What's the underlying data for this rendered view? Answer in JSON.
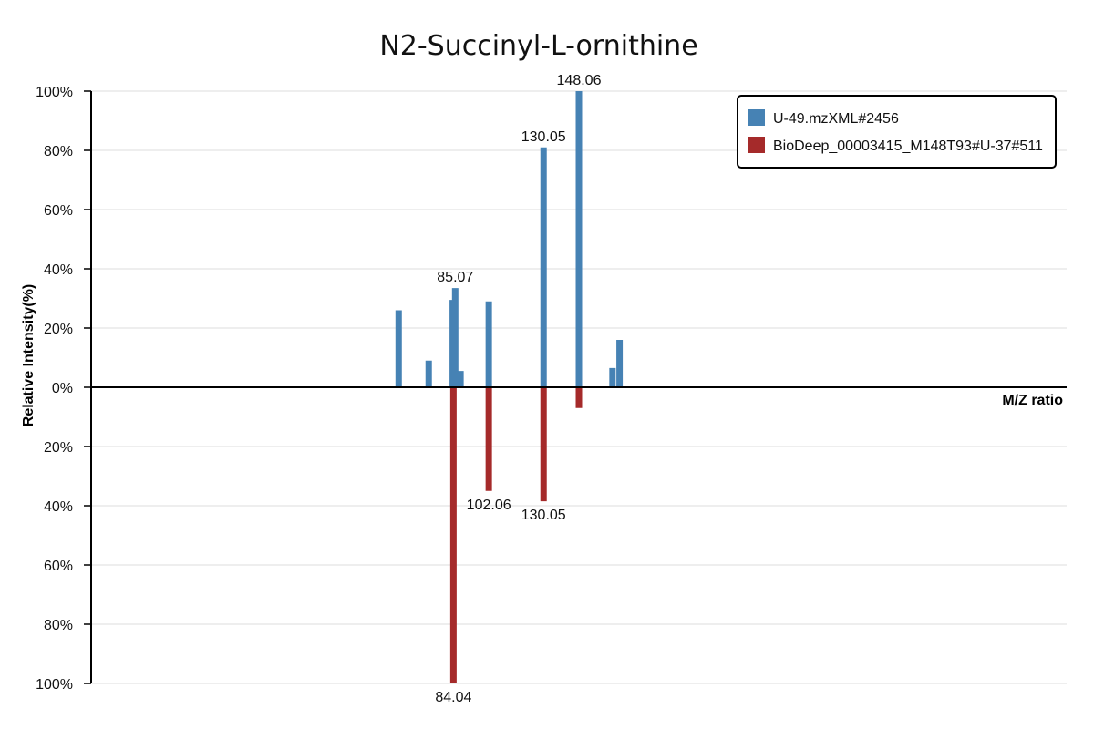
{
  "chart_data": {
    "type": "bar",
    "title": "N2-Succinyl-L-ornithine",
    "xlabel": "M/Z ratio",
    "ylabel": "Relative Intensity(%)",
    "grid": true,
    "legend_position": "top-right",
    "x_domain_estimate": [
      0,
      276
    ],
    "ylim_top": [
      0,
      100
    ],
    "ylim_bottom": [
      0,
      100
    ],
    "y_ticks_top": [
      "100%",
      "80%",
      "60%",
      "40%",
      "20%",
      "0%"
    ],
    "y_ticks_bottom": [
      "20%",
      "40%",
      "60%",
      "80%",
      "100%"
    ],
    "series": [
      {
        "name": "U-49.mzXML#2456",
        "color": "#4682b4",
        "direction": "up",
        "peaks": [
          {
            "mz": 87.0,
            "intensity": 26
          },
          {
            "mz": 95.5,
            "intensity": 9
          },
          {
            "mz": 102.3,
            "intensity": 29.5
          },
          {
            "mz": 103.0,
            "intensity": 33.5,
            "label": "85.07"
          },
          {
            "mz": 104.5,
            "intensity": 5.5
          },
          {
            "mz": 112.5,
            "intensity": 29
          },
          {
            "mz": 128.0,
            "intensity": 81,
            "label": "130.05"
          },
          {
            "mz": 138.0,
            "intensity": 100,
            "label": "148.06"
          },
          {
            "mz": 147.5,
            "intensity": 6.5
          },
          {
            "mz": 149.5,
            "intensity": 16
          }
        ]
      },
      {
        "name": "BioDeep_00003415_M148T93#U-37#511",
        "color": "#a52a2a",
        "direction": "down",
        "peaks": [
          {
            "mz": 102.5,
            "intensity": 100,
            "label": "84.04"
          },
          {
            "mz": 112.5,
            "intensity": 35,
            "label": "102.06"
          },
          {
            "mz": 128.0,
            "intensity": 38.5,
            "label": "130.05"
          },
          {
            "mz": 138.0,
            "intensity": 7
          }
        ]
      }
    ]
  }
}
